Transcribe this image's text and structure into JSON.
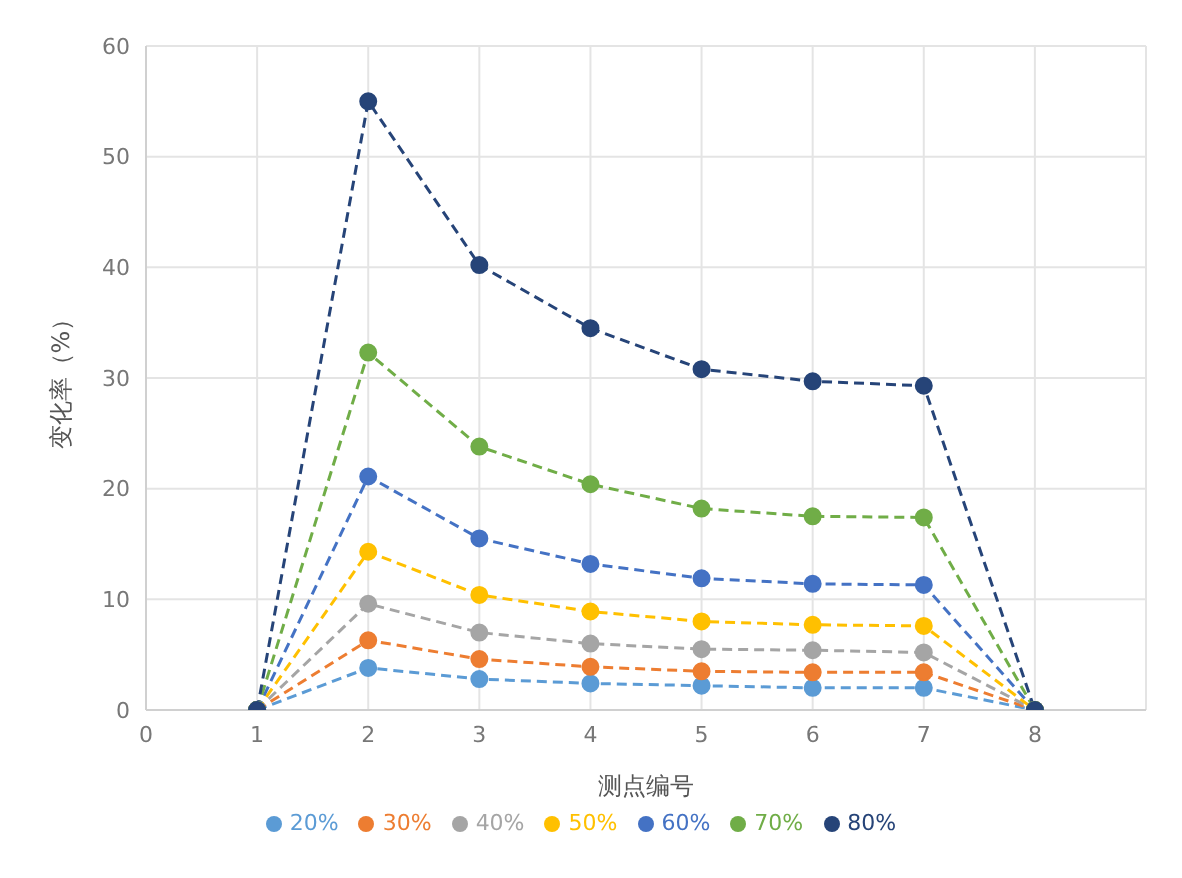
{
  "chart_data": {
    "type": "line",
    "xlabel": "测点编号",
    "ylabel": "变化率（%）",
    "x": [
      1,
      2,
      3,
      4,
      5,
      6,
      7,
      8
    ],
    "xlim": [
      0,
      9
    ],
    "xticks": [
      0,
      1,
      2,
      3,
      4,
      5,
      6,
      7,
      8
    ],
    "ylim": [
      0,
      60
    ],
    "yticks": [
      0,
      10,
      20,
      30,
      40,
      50,
      60
    ],
    "grid": true,
    "legend": "bottom",
    "marker": "circle",
    "line_style": "dashed",
    "series": [
      {
        "name": "20%",
        "color": "#5b9bd5",
        "values": [
          0,
          3.8,
          2.8,
          2.4,
          2.2,
          2.0,
          2.0,
          0
        ]
      },
      {
        "name": "30%",
        "color": "#ed7d31",
        "values": [
          0,
          6.3,
          4.6,
          3.9,
          3.5,
          3.4,
          3.4,
          0
        ]
      },
      {
        "name": "40%",
        "color": "#a5a5a5",
        "values": [
          0,
          9.6,
          7.0,
          6.0,
          5.5,
          5.4,
          5.2,
          0
        ]
      },
      {
        "name": "50%",
        "color": "#ffc000",
        "values": [
          0,
          14.3,
          10.4,
          8.9,
          8.0,
          7.7,
          7.6,
          0
        ]
      },
      {
        "name": "60%",
        "color": "#4472c4",
        "values": [
          0,
          21.1,
          15.5,
          13.2,
          11.9,
          11.4,
          11.3,
          0
        ]
      },
      {
        "name": "70%",
        "color": "#70ad47",
        "values": [
          0,
          32.3,
          23.8,
          20.4,
          18.2,
          17.5,
          17.4,
          0
        ]
      },
      {
        "name": "80%",
        "color": "#264478",
        "values": [
          0,
          55,
          40.2,
          34.5,
          30.8,
          29.7,
          29.3,
          0
        ]
      }
    ]
  }
}
